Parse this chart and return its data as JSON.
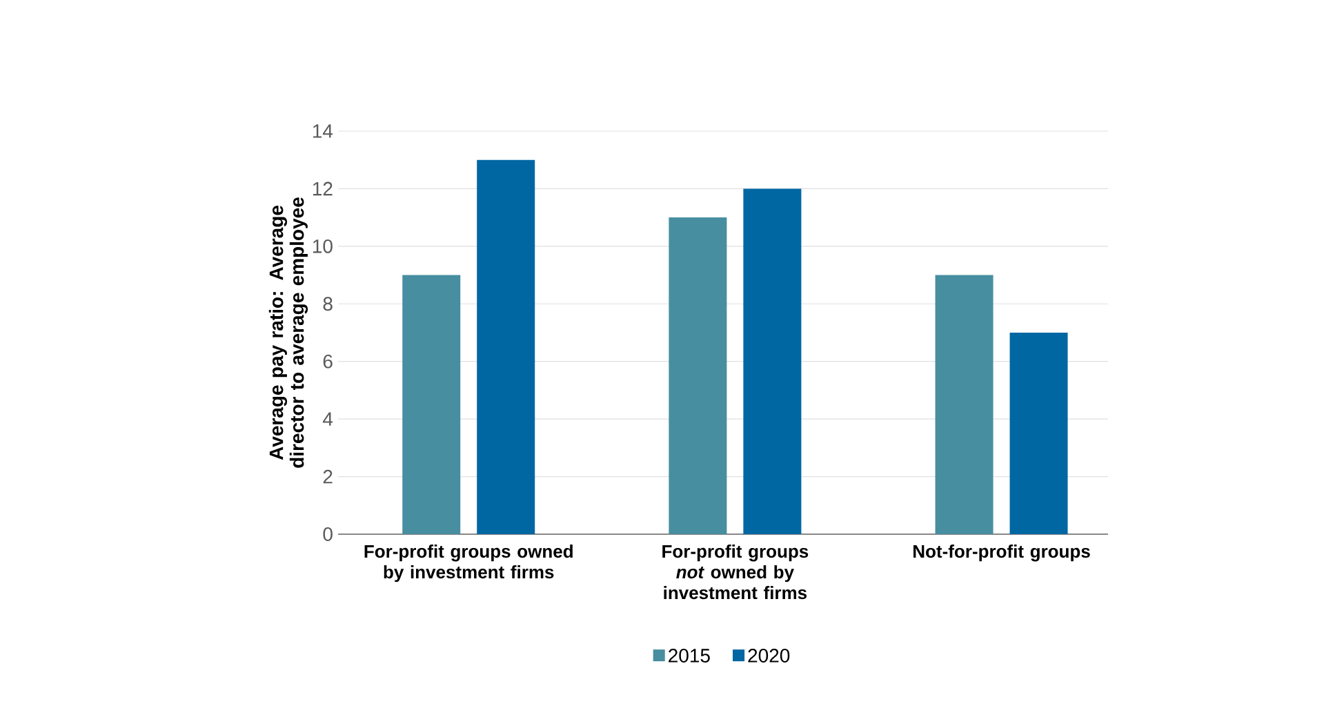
{
  "chart_data": {
    "type": "bar",
    "ylabel": "Average pay ratio: Average director to average employee",
    "categories": [
      "For-profit groups owned by investment firms",
      "For-profit groups *not* owned by investment firms",
      "Not-for-profit groups"
    ],
    "series": [
      {
        "name": "2015",
        "color": "#478ea0",
        "values": [
          9,
          11,
          9
        ]
      },
      {
        "name": "2020",
        "color": "#0067a3",
        "values": [
          13,
          12,
          7
        ]
      }
    ],
    "ylim": [
      0,
      14
    ],
    "yticks": [
      0,
      2,
      4,
      6,
      8,
      10,
      12,
      14
    ],
    "grid": "y",
    "legend": "bottom"
  }
}
